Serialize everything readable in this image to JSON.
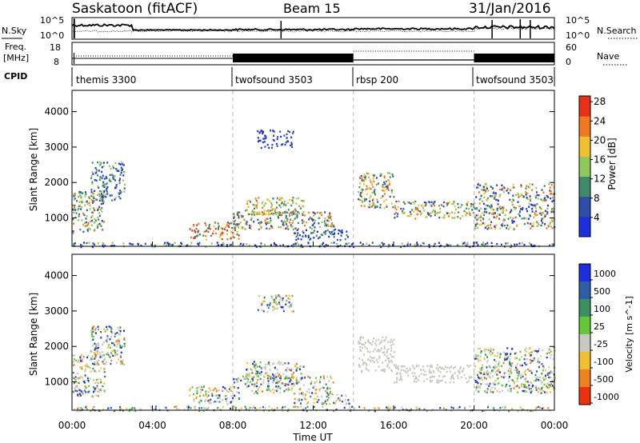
{
  "header": {
    "station": "Saskatoon (fitACF)",
    "beam": "Beam 15",
    "date": "31/Jan/2016"
  },
  "chart_data": [
    {
      "type": "line",
      "panel": "noise",
      "left_label": "N.Sky",
      "right_label": "N.Search",
      "left_ticks": [
        "10^5",
        "10^0"
      ],
      "right_ticks": [
        "10^5",
        "10^0"
      ],
      "note": "N.Sky solid, N.Search dotted"
    },
    {
      "type": "line",
      "panel": "freq-nave",
      "left_label_top": "Freq.",
      "left_label_unit": "[MHz]",
      "left_ticks": [
        18,
        8
      ],
      "right_label": "Nave",
      "right_ticks": [
        60,
        0
      ]
    },
    {
      "type": "table",
      "panel": "cpid",
      "label": "CPID",
      "segments": [
        {
          "name": "themis 3300",
          "start": "00:00",
          "end": "08:00"
        },
        {
          "name": "twofsound 3503",
          "start": "08:00",
          "end": "14:00"
        },
        {
          "name": "rbsp 200",
          "start": "14:00",
          "end": "20:00"
        },
        {
          "name": "twofsound 3503",
          "start": "20:00",
          "end": "24:00"
        }
      ]
    },
    {
      "type": "heatmap",
      "panel": "power",
      "ylabel": "Slant Range [km]",
      "yticks": [
        1000,
        2000,
        3000,
        4000
      ],
      "ylim": [
        200,
        4600
      ],
      "xlim": [
        "00:00",
        "24:00"
      ],
      "colorbar_label": "Power [dB]",
      "colorbar_ticks": [
        4,
        8,
        12,
        16,
        20,
        24,
        28
      ],
      "colors": [
        "#1c2ee0",
        "#2e4ea8",
        "#3f8a6a",
        "#8fc85a",
        "#f0c030",
        "#f07820",
        "#e83018"
      ]
    },
    {
      "type": "heatmap",
      "panel": "velocity",
      "ylabel": "Slant Range [km]",
      "yticks": [
        1000,
        2000,
        3000,
        4000
      ],
      "ylim": [
        200,
        4600
      ],
      "xlim": [
        "00:00",
        "24:00"
      ],
      "xlabel": "Time UT",
      "xticks": [
        "00:00",
        "04:00",
        "08:00",
        "12:00",
        "16:00",
        "20:00",
        "00:00"
      ],
      "colorbar_label": "Velocity [m s^-1]",
      "colorbar_ticks": [
        "1000",
        "500",
        "100",
        "25",
        "-25",
        "-100",
        "-500",
        "-1000"
      ],
      "colors": [
        "#1c2ee0",
        "#2f5ea8",
        "#3a9060",
        "#62c83a",
        "#c8c8c0",
        "#f0c030",
        "#f08020",
        "#ee3010"
      ]
    }
  ]
}
